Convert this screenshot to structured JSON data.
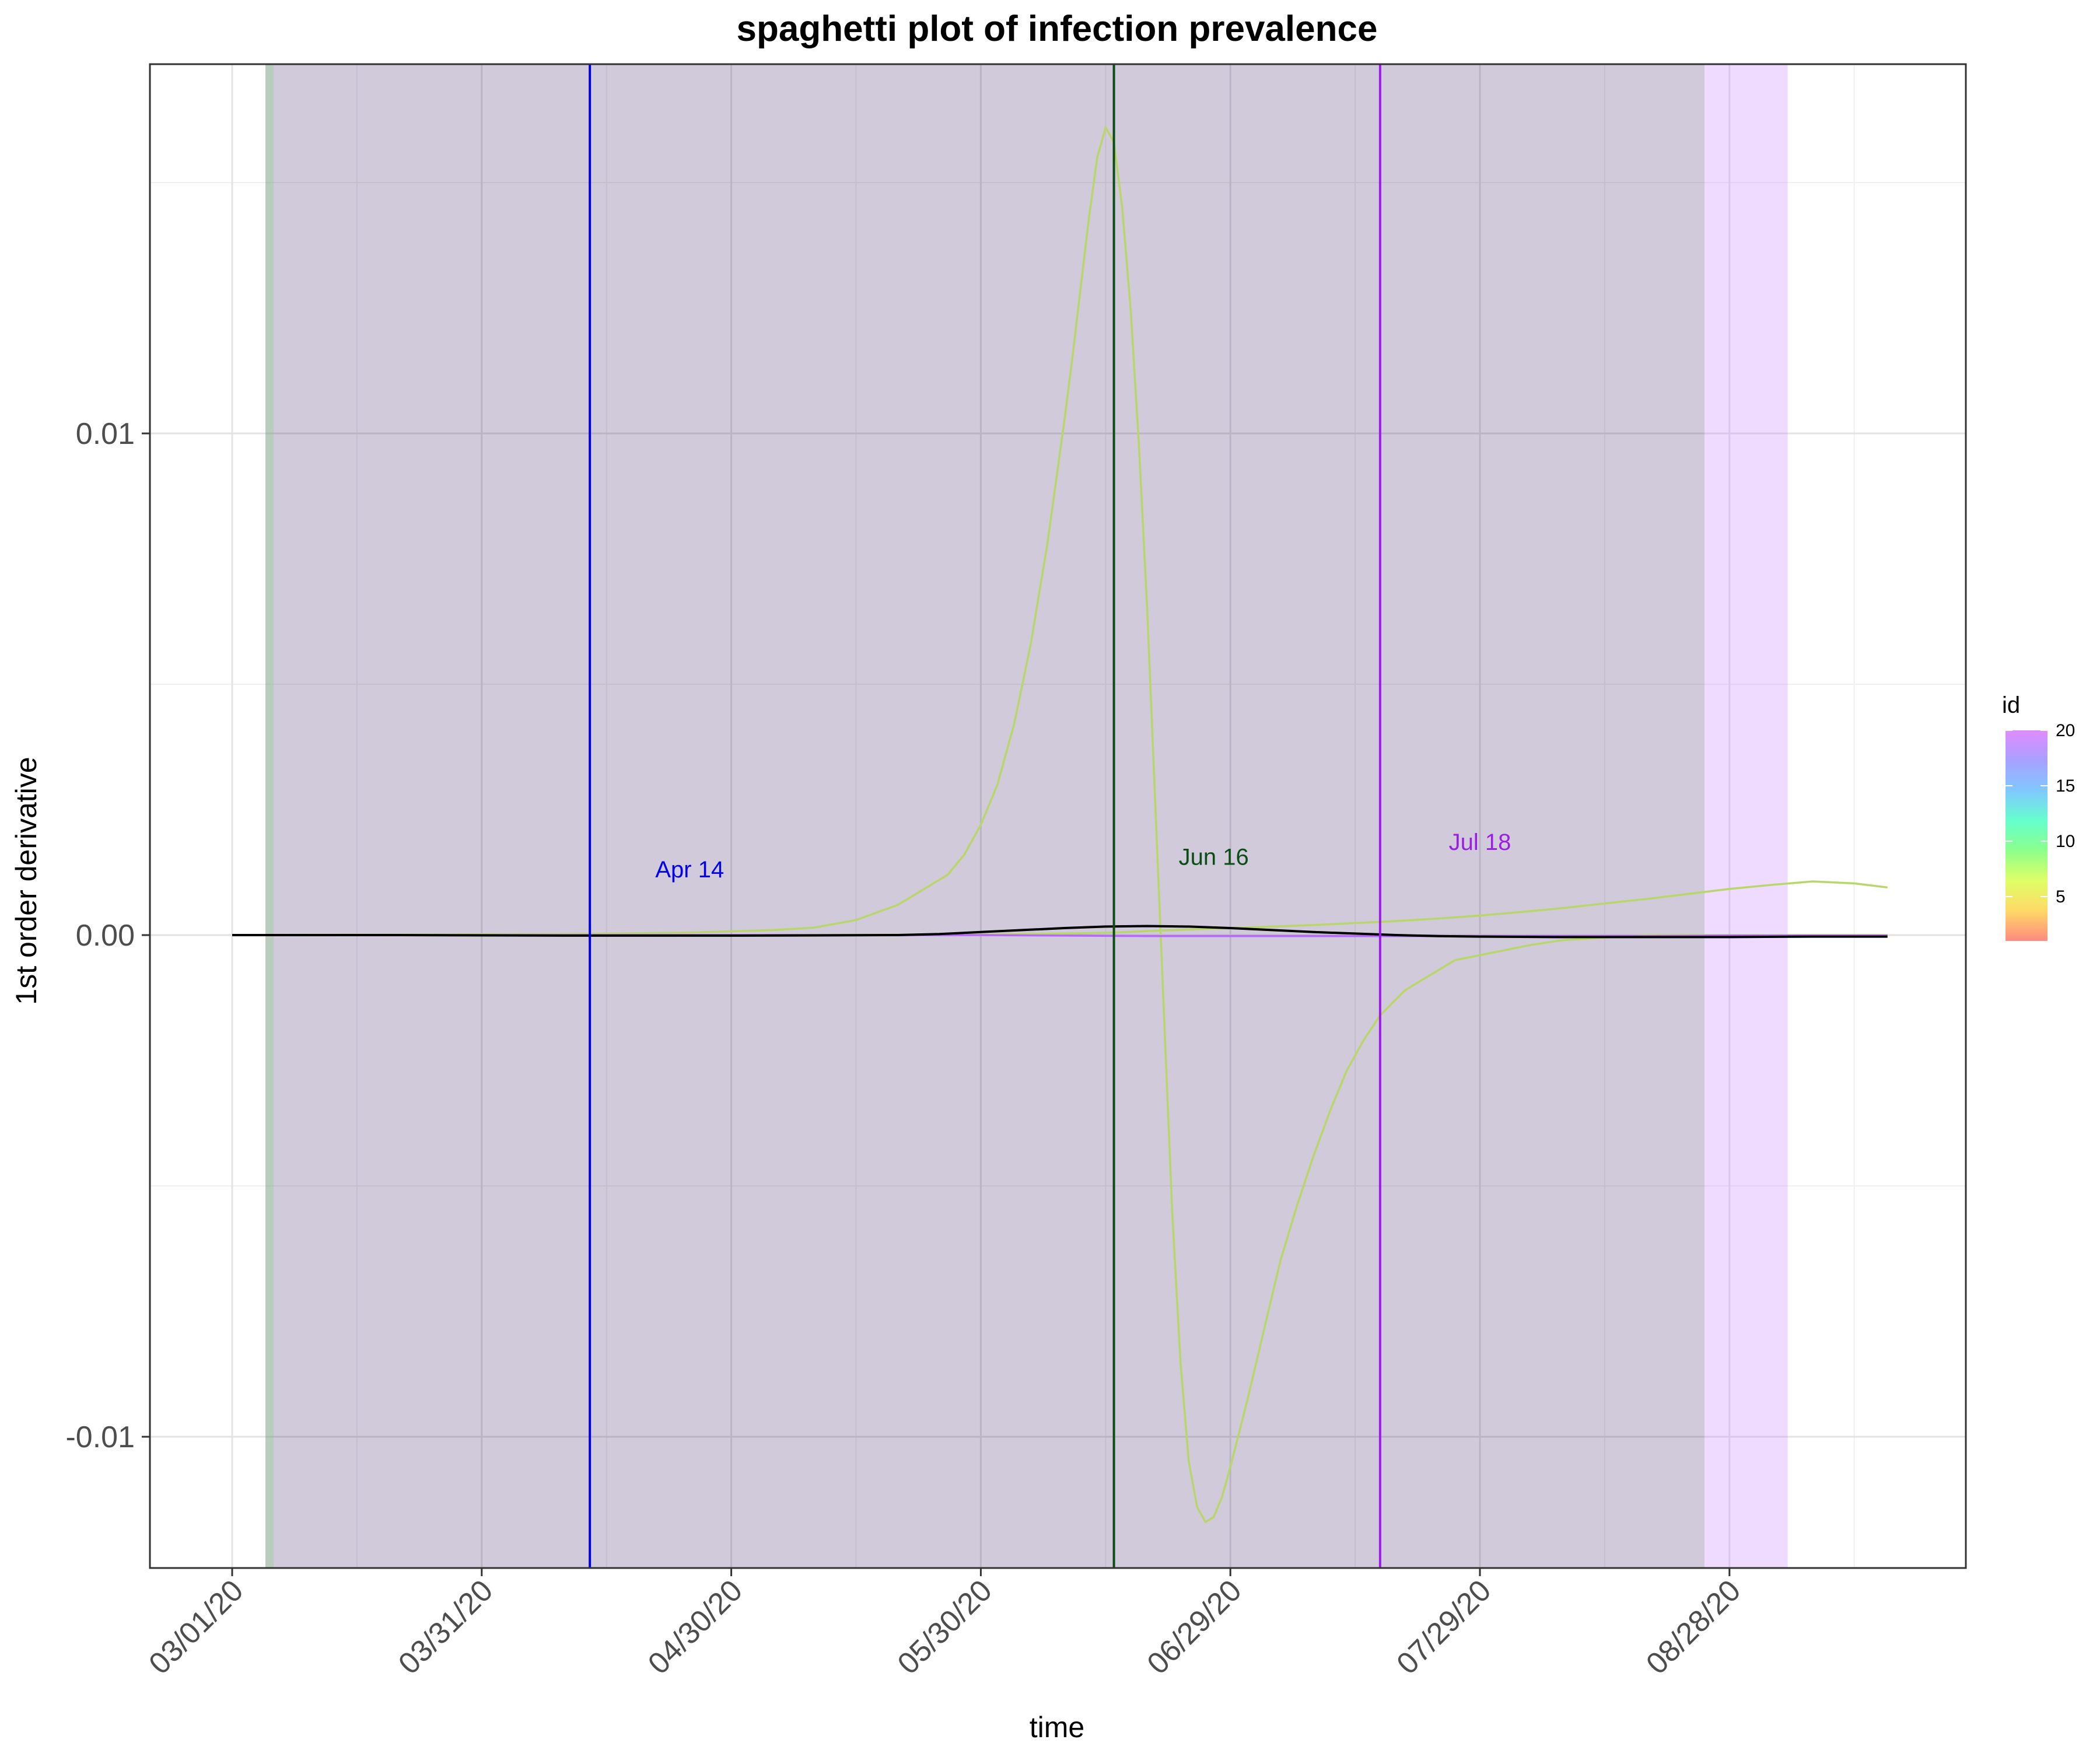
{
  "chart_data": {
    "type": "line",
    "title": "spaghetti plot of infection prevalence",
    "xlabel": "time",
    "ylabel": "1st order derivative",
    "x_ticks": [
      "03/01/20",
      "03/31/20",
      "04/30/20",
      "05/30/20",
      "06/29/20",
      "07/29/20",
      "08/28/20"
    ],
    "y_ticks": [
      "-0.01",
      "0.00",
      "0.01"
    ],
    "y_tick_values": [
      -0.01,
      0.0,
      0.01
    ],
    "x_range_days": [
      -10,
      199
    ],
    "ylim": [
      -0.0126,
      0.0174
    ],
    "grid": true,
    "shaded_regions": [
      {
        "start_day": 4,
        "end_day": 177,
        "color": "#2e0f5c",
        "opacity": 0.22
      },
      {
        "start_day": 177,
        "end_day": 187,
        "color": "#c77dff",
        "opacity": 0.28
      },
      {
        "start_day": 4,
        "end_day": 5,
        "color": "#8fcf8f",
        "opacity": 0.35
      }
    ],
    "vlines": [
      {
        "day": 43,
        "label": "Apr 14",
        "color": "#0000ee",
        "label_day": 55,
        "label_y": 0.00115
      },
      {
        "day": 106,
        "label": "Jun 16",
        "color": "#0b4d14",
        "label_day": 118,
        "label_y": 0.0014
      },
      {
        "day": 138,
        "label": "Jul 18",
        "color": "#9b1ee6",
        "label_day": 150,
        "label_y": 0.0017
      }
    ],
    "series": [
      {
        "color": "#b9d66a",
        "x": [
          0,
          20,
          40,
          55,
          65,
          70,
          75,
          80,
          83,
          86,
          88,
          90,
          92,
          94,
          96,
          98,
          100,
          101,
          102,
          103,
          104,
          105,
          106,
          107,
          108,
          109,
          110,
          111,
          112,
          113,
          114,
          115,
          116,
          117,
          118,
          119,
          120,
          122,
          124,
          126,
          128,
          130,
          132,
          134,
          136,
          138,
          141,
          144,
          147,
          150,
          153,
          156,
          160,
          165,
          170,
          175,
          180,
          185,
          190,
          195,
          199
        ],
        "y": [
          0,
          1e-05,
          2e-05,
          5e-05,
          0.0001,
          0.00015,
          0.0003,
          0.0006,
          0.0009,
          0.0012,
          0.0016,
          0.0022,
          0.003,
          0.0042,
          0.0058,
          0.0078,
          0.0102,
          0.0115,
          0.0129,
          0.0143,
          0.0155,
          0.0161,
          0.0158,
          0.0145,
          0.0125,
          0.0098,
          0.0065,
          0.0025,
          -0.0015,
          -0.0055,
          -0.0085,
          -0.0105,
          -0.0114,
          -0.0117,
          -0.0116,
          -0.0112,
          -0.0106,
          -0.0093,
          -0.0079,
          -0.0065,
          -0.0054,
          -0.0044,
          -0.0035,
          -0.0027,
          -0.0021,
          -0.0016,
          -0.0011,
          -0.0008,
          -0.0005,
          -0.0004,
          -0.0003,
          -0.0002,
          -0.0001,
          -5e-05,
          0,
          0,
          0,
          0,
          0,
          0,
          0
        ]
      },
      {
        "color": "#b9d66a",
        "x": [
          0,
          60,
          90,
          100,
          106,
          110,
          115,
          120,
          125,
          130,
          135,
          140,
          145,
          150,
          155,
          160,
          165,
          170,
          175,
          180,
          185,
          190,
          195,
          199
        ],
        "y": [
          0,
          0,
          1e-05,
          3e-05,
          5e-05,
          8e-05,
          0.00011,
          0.00014,
          0.00017,
          0.0002,
          0.00024,
          0.00028,
          0.00033,
          0.00039,
          0.00046,
          0.00054,
          0.00063,
          0.00072,
          0.00082,
          0.00092,
          0.001,
          0.00107,
          0.00103,
          0.00095
        ]
      },
      {
        "color": "#b866ff",
        "x": [
          0,
          60,
          90,
          100,
          110,
          120,
          130,
          140,
          150,
          160,
          170,
          180,
          190,
          199
        ],
        "y": [
          0,
          0,
          0,
          -1e-05,
          -2e-05,
          -2e-05,
          -2e-05,
          -2e-05,
          -2e-05,
          -2e-05,
          -2e-05,
          -1e-05,
          -1e-05,
          -1e-05
        ]
      },
      {
        "color": "#000000",
        "x": [
          0,
          20,
          40,
          60,
          80,
          85,
          90,
          95,
          100,
          105,
          110,
          115,
          120,
          125,
          130,
          135,
          140,
          145,
          150,
          160,
          170,
          180,
          190,
          199
        ],
        "y": [
          0,
          0,
          -1e-05,
          -1e-05,
          0,
          2e-05,
          6e-05,
          0.0001,
          0.00014,
          0.00017,
          0.00018,
          0.00017,
          0.00014,
          0.0001,
          6e-05,
          3e-05,
          0,
          -2e-05,
          -3e-05,
          -4e-05,
          -4e-05,
          -4e-05,
          -3e-05,
          -3e-05
        ]
      }
    ],
    "legend": {
      "title": "id",
      "position": "right",
      "colors": [
        "#ff8a80",
        "#ffd966",
        "#dfff66",
        "#8cff8c",
        "#66ffcc",
        "#80c8ff",
        "#a8a0ff",
        "#e08cff"
      ],
      "ticks": [
        "5",
        "10",
        "15",
        "20"
      ],
      "tick_values": [
        5,
        10,
        15,
        20
      ],
      "range": [
        1,
        20
      ]
    }
  }
}
